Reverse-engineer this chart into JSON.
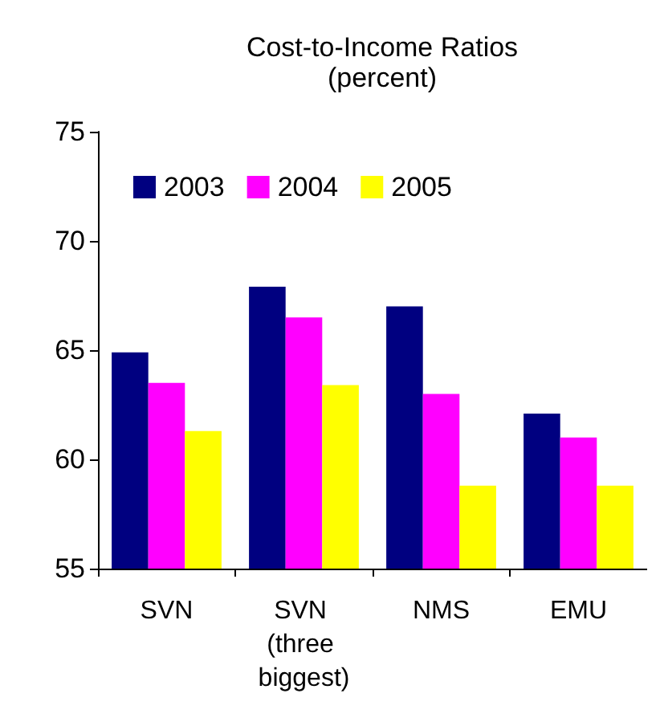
{
  "chart_data": {
    "type": "bar",
    "title": "Cost-to-Income Ratios",
    "subtitle": "(percent)",
    "categories": [
      "SVN",
      "SVN (three biggest)",
      "NMS",
      "EMU"
    ],
    "series": [
      {
        "name": "2003",
        "color": "#000080",
        "values": [
          64.9,
          67.9,
          67.0,
          62.1
        ]
      },
      {
        "name": "2004",
        "color": "#ff00ff",
        "values": [
          63.5,
          66.5,
          63.0,
          61.0
        ]
      },
      {
        "name": "2005",
        "color": "#ffff00",
        "values": [
          61.3,
          63.4,
          58.8,
          58.8
        ]
      }
    ],
    "ylim": [
      55,
      75
    ],
    "yticks": [
      55,
      60,
      65,
      70,
      75
    ],
    "grid": false,
    "legend": "top left"
  }
}
